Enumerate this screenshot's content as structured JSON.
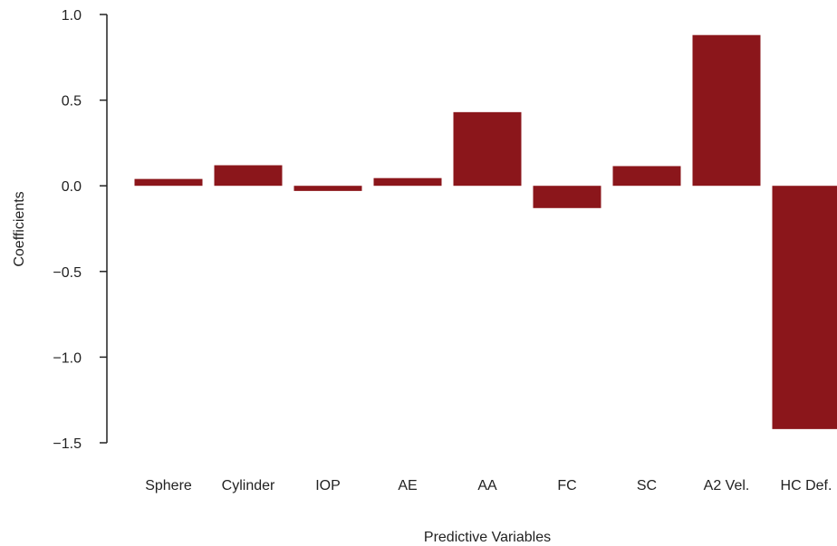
{
  "chart_data": {
    "type": "bar",
    "title": "",
    "xlabel": "Predictive Variables",
    "ylabel": "Coefficients",
    "categories": [
      "Sphere",
      "Cylinder",
      "IOP",
      "AE",
      "AA",
      "FC",
      "SC",
      "A2 Vel.",
      "HC Def."
    ],
    "values": [
      0.04,
      0.12,
      -0.03,
      0.045,
      0.43,
      -0.13,
      0.115,
      0.88,
      -1.42
    ],
    "ylim": [
      -1.5,
      1.0
    ],
    "yticks": [
      1.0,
      0.5,
      0.0,
      -0.5,
      -1.0,
      -1.5
    ],
    "ytick_labels": [
      "1.0",
      "0.5",
      "0.0",
      "−0.5",
      "−1.0",
      "−1.5"
    ],
    "grid": false,
    "bar_color": "#8b161b"
  }
}
